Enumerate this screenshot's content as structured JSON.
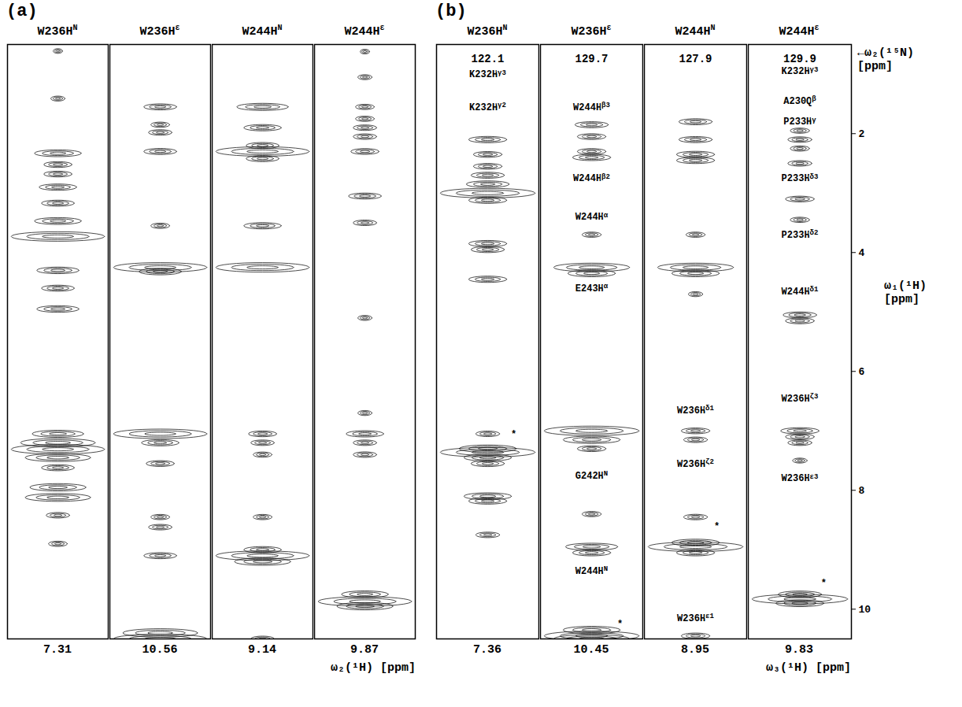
{
  "chart_data": [
    {
      "type": "nmr_strips",
      "panel": "(a)",
      "x_axis_label": "ω₂(¹H) [ppm]",
      "ylim": [
        0.5,
        10.5
      ],
      "tick_labels": false,
      "strips": [
        {
          "title": {
            "text": "W236H",
            "sup": "N"
          },
          "shift_1H": 7.31,
          "peaks": {
            "y": [
              0.61,
              1.41,
              2.33,
              2.52,
              2.68,
              2.9,
              3.17,
              3.47,
              3.73,
              4.3,
              4.6,
              4.95,
              7.05,
              7.2,
              7.31,
              7.45,
              7.62,
              7.95,
              8.12,
              8.42,
              8.9
            ],
            "width": [
              0.1,
              0.15,
              0.5,
              0.3,
              0.3,
              0.4,
              0.35,
              0.5,
              1.0,
              0.45,
              0.35,
              0.45,
              0.55,
              0.8,
              1.0,
              0.7,
              0.35,
              0.6,
              0.7,
              0.25,
              0.2
            ]
          }
        },
        {
          "title": {
            "text": "W236H",
            "sup": "ε"
          },
          "shift_1H": 10.56,
          "peaks": {
            "y": [
              1.55,
              1.85,
              1.98,
              2.3,
              3.55,
              4.25,
              4.32,
              7.05,
              7.2,
              7.55,
              8.45,
              8.62,
              9.1,
              10.4,
              10.5,
              10.6
            ],
            "width": [
              0.35,
              0.2,
              0.25,
              0.35,
              0.2,
              1.0,
              0.45,
              1.0,
              0.4,
              0.3,
              0.2,
              0.25,
              0.35,
              0.8,
              1.0,
              0.7
            ]
          }
        },
        {
          "title": {
            "text": "W244H",
            "sup": "N"
          },
          "shift_1H": 9.14,
          "peaks": {
            "y": [
              1.55,
              1.9,
              2.2,
              2.3,
              2.42,
              3.55,
              4.25,
              7.05,
              7.2,
              7.4,
              8.45,
              9.0,
              9.1,
              9.2,
              10.5
            ],
            "width": [
              0.55,
              0.4,
              0.35,
              1.0,
              0.35,
              0.4,
              1.0,
              0.3,
              0.25,
              0.2,
              0.2,
              0.4,
              1.0,
              0.6,
              0.25
            ]
          }
        },
        {
          "title": {
            "text": "W244H",
            "sup": "ε"
          },
          "shift_1H": 9.87,
          "peaks": {
            "y": [
              0.62,
              1.05,
              1.55,
              1.75,
              1.9,
              2.05,
              2.3,
              3.05,
              3.5,
              5.1,
              6.7,
              7.05,
              7.2,
              7.4,
              9.75,
              9.87,
              9.95
            ],
            "width": [
              0.1,
              0.15,
              0.2,
              0.2,
              0.25,
              0.25,
              0.3,
              0.35,
              0.25,
              0.15,
              0.15,
              0.4,
              0.25,
              0.25,
              0.5,
              1.0,
              0.6
            ]
          }
        }
      ]
    },
    {
      "type": "nmr_strips",
      "panel": "(b)",
      "x_axis_label": "ω₃(¹H) [ppm]",
      "y_axis_label": "ω₁(¹H) [ppm]",
      "n15_axis_label": "←ω₂(¹⁵N) [ppm]",
      "ylim": [
        0.5,
        10.5
      ],
      "yticks": [
        2,
        4,
        6,
        8,
        10
      ],
      "tick_labels": "y",
      "strips": [
        {
          "title": {
            "text": "W236H",
            "sup": "N"
          },
          "shift_1H": 7.36,
          "shift_15N": 122.1,
          "peaks": {
            "y": [
              2.1,
              2.35,
              2.55,
              2.7,
              2.85,
              3.0,
              3.12,
              3.85,
              3.95,
              4.45,
              7.05,
              7.3,
              7.36,
              7.45,
              7.55,
              8.1,
              8.18,
              8.75
            ],
            "width": [
              0.4,
              0.3,
              0.3,
              0.35,
              0.45,
              1.0,
              0.4,
              0.4,
              0.35,
              0.4,
              0.25,
              0.6,
              1.0,
              0.5,
              0.35,
              0.5,
              0.4,
              0.25
            ]
          },
          "annotations": [
            {
              "text": "K232H",
              "sup": "γ3",
              "x": 0,
              "y": 1.0
            },
            {
              "text": "K232H",
              "sup": "γ2",
              "x": 0,
              "y": 1.55
            },
            {
              "text": "*",
              "x": 0.55,
              "y": 7.05
            }
          ]
        },
        {
          "title": {
            "text": "W236H",
            "sup": "ε"
          },
          "shift_1H": 10.45,
          "shift_15N": 129.7,
          "peaks": {
            "y": [
              1.85,
              2.05,
              2.3,
              2.4,
              3.7,
              4.25,
              4.35,
              7.0,
              7.15,
              7.3,
              8.4,
              8.95,
              9.05,
              10.35,
              10.45,
              10.5
            ],
            "width": [
              0.35,
              0.3,
              0.3,
              0.4,
              0.2,
              0.8,
              0.5,
              1.0,
              0.6,
              0.3,
              0.2,
              0.55,
              0.4,
              0.6,
              1.0,
              0.8
            ]
          },
          "annotations": [
            {
              "text": "W244H",
              "sup": "β3",
              "x": 0,
              "y": 1.55
            },
            {
              "text": "W244H",
              "sup": "β2",
              "x": 0,
              "y": 2.75
            },
            {
              "text": "W244H",
              "sup": "α",
              "x": 0,
              "y": 3.4
            },
            {
              "text": "E243H",
              "sup": "α",
              "x": 0,
              "y": 4.6
            },
            {
              "text": "G242H",
              "sup": "N",
              "x": 0,
              "y": 7.75
            },
            {
              "text": "W244H",
              "sup": "N",
              "x": 0,
              "y": 9.35
            },
            {
              "text": "*",
              "x": 0.6,
              "y": 10.25
            }
          ]
        },
        {
          "title": {
            "text": "W244H",
            "sup": "N"
          },
          "shift_1H": 8.95,
          "shift_15N": 127.9,
          "peaks": {
            "y": [
              1.8,
              2.1,
              2.35,
              2.45,
              3.7,
              4.25,
              4.35,
              4.7,
              7.0,
              7.15,
              8.45,
              8.88,
              8.95,
              9.05,
              10.45
            ],
            "width": [
              0.35,
              0.35,
              0.4,
              0.4,
              0.2,
              0.8,
              0.5,
              0.15,
              0.3,
              0.25,
              0.25,
              0.5,
              1.0,
              0.4,
              0.3
            ]
          },
          "annotations": [
            {
              "text": "W236H",
              "sup": "δ1",
              "x": 0,
              "y": 6.65
            },
            {
              "text": "W236H",
              "sup": "ζ2",
              "x": 0,
              "y": 7.55
            },
            {
              "text": "*",
              "x": 0.45,
              "y": 8.6
            },
            {
              "text": "W236H",
              "sup": "ε1",
              "x": 0,
              "y": 10.15
            }
          ]
        },
        {
          "title": {
            "text": "W244H",
            "sup": "ε"
          },
          "shift_1H": 9.83,
          "shift_15N": 129.9,
          "peaks": {
            "y": [
              1.95,
              2.1,
              2.25,
              2.5,
              3.1,
              3.45,
              5.05,
              5.15,
              7.0,
              7.1,
              7.2,
              7.5,
              9.75,
              9.83,
              9.9
            ],
            "width": [
              0.2,
              0.25,
              0.2,
              0.25,
              0.3,
              0.2,
              0.35,
              0.3,
              0.4,
              0.3,
              0.25,
              0.15,
              0.45,
              1.0,
              0.5
            ]
          },
          "annotations": [
            {
              "text": "K232H",
              "sup": "γ3",
              "x": 0,
              "y": 0.95
            },
            {
              "text": "A230Q",
              "sup": "β",
              "x": 0,
              "y": 1.45
            },
            {
              "text": "P233H",
              "sup": "γ",
              "x": 0,
              "y": 1.8
            },
            {
              "text": "P233H",
              "sup": "δ3",
              "x": 0,
              "y": 2.75
            },
            {
              "text": "P233H",
              "sup": "δ2",
              "x": 0,
              "y": 3.7
            },
            {
              "text": "W244H",
              "sup": "δ1",
              "x": 0,
              "y": 4.65
            },
            {
              "text": "W236H",
              "sup": "ζ3",
              "x": 0,
              "y": 6.45
            },
            {
              "text": "W236H",
              "sup": "ε3",
              "x": 0,
              "y": 7.8
            },
            {
              "text": "*",
              "x": 0.5,
              "y": 9.55
            }
          ]
        }
      ]
    }
  ]
}
